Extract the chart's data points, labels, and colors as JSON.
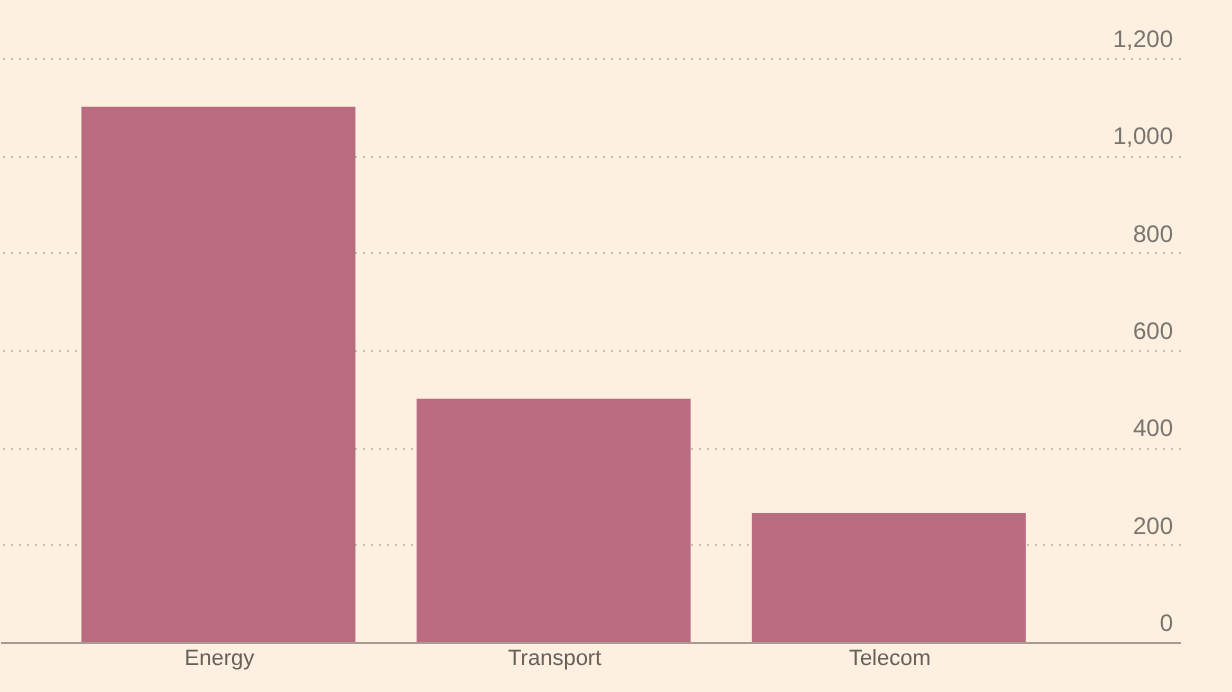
{
  "chart_data": {
    "type": "bar",
    "categories": [
      "Energy",
      "Transport",
      "Telecom"
    ],
    "values": [
      1100,
      500,
      265
    ],
    "color": "#b96b80",
    "ylim": [
      0,
      1200
    ],
    "yticks": [
      0,
      200,
      400,
      600,
      800,
      {
        "value": 1000,
        "label": "1,000"
      },
      {
        "value": 1200,
        "label": "1,200"
      }
    ],
    "grid": "y"
  }
}
